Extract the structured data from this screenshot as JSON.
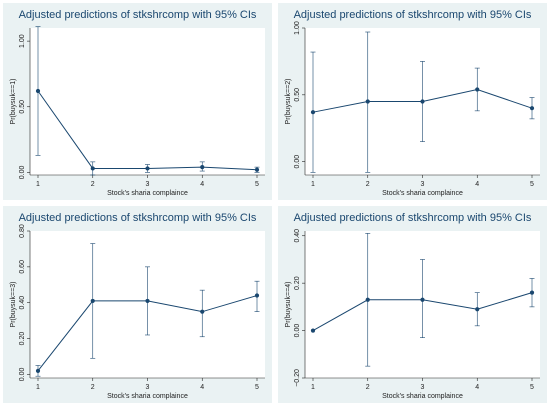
{
  "chart_data": [
    {
      "type": "line",
      "title": "Adjusted predictions of stkshrcomp with 95% CIs",
      "xlabel": "Stock's sharia complaince",
      "ylabel": "Pr(buysuk==1)",
      "x": [
        1,
        2,
        3,
        4,
        5
      ],
      "xticks": [
        "1",
        "2",
        "3",
        "4",
        "5"
      ],
      "yticks": [
        0,
        0.5,
        1
      ],
      "ytick_labels": [
        "0.00",
        "0.50",
        "1.00"
      ],
      "ylim": [
        -0.02,
        1.1
      ],
      "values": [
        0.62,
        0.03,
        0.03,
        0.04,
        0.02
      ],
      "ci_low": [
        0.13,
        -0.02,
        0.0,
        0.01,
        0.0
      ],
      "ci_high": [
        1.11,
        0.08,
        0.06,
        0.08,
        0.04
      ],
      "grid": false
    },
    {
      "type": "line",
      "title": "Adjusted predictions of stkshrcomp with 95% CIs",
      "xlabel": "Stock's sharia complaince",
      "ylabel": "Pr(buysuk==2)",
      "x": [
        1,
        2,
        3,
        4,
        5
      ],
      "xticks": [
        "1",
        "2",
        "3",
        "4",
        "5"
      ],
      "yticks": [
        0,
        0.5,
        1
      ],
      "ytick_labels": [
        "0.00",
        "0.50",
        "1.00"
      ],
      "ylim": [
        -0.1,
        1.0
      ],
      "values": [
        0.37,
        0.45,
        0.45,
        0.54,
        0.4
      ],
      "ci_low": [
        -0.08,
        -0.08,
        0.15,
        0.38,
        0.32
      ],
      "ci_high": [
        0.82,
        0.97,
        0.75,
        0.7,
        0.48
      ],
      "grid": false
    },
    {
      "type": "line",
      "title": "Adjusted predictions of stkshrcomp with 95% CIs",
      "xlabel": "Stock's sharia complaince",
      "ylabel": "Pr(buysuk==3)",
      "x": [
        1,
        2,
        3,
        4,
        5
      ],
      "xticks": [
        "1",
        "2",
        "3",
        "4",
        "5"
      ],
      "yticks": [
        0,
        0.2,
        0.4,
        0.6,
        0.8
      ],
      "ytick_labels": [
        "0.00",
        "0.20",
        "0.40",
        "0.60",
        "0.80"
      ],
      "ylim": [
        -0.02,
        0.8
      ],
      "values": [
        0.02,
        0.41,
        0.41,
        0.35,
        0.44
      ],
      "ci_low": [
        -0.01,
        0.09,
        0.22,
        0.21,
        0.35
      ],
      "ci_high": [
        0.05,
        0.73,
        0.6,
        0.47,
        0.52
      ],
      "grid": false
    },
    {
      "type": "line",
      "title": "Adjusted predictions of stkshrcomp with 95% CIs",
      "xlabel": "Stock's sharia complaince",
      "ylabel": "Pr(buysuk==4)",
      "x": [
        1,
        2,
        3,
        4,
        5
      ],
      "xticks": [
        "1",
        "2",
        "3",
        "4",
        "5"
      ],
      "yticks": [
        -0.2,
        0,
        0.2,
        0.4
      ],
      "ytick_labels": [
        "−0.20",
        "0.00",
        "0.20",
        "0.40"
      ],
      "ylim": [
        -0.2,
        0.42
      ],
      "values": [
        0.0,
        0.13,
        0.13,
        0.09,
        0.16
      ],
      "ci_low": [
        0.0,
        -0.15,
        -0.03,
        0.02,
        0.1
      ],
      "ci_high": [
        0.0,
        0.41,
        0.3,
        0.16,
        0.22
      ],
      "grid": false
    }
  ]
}
